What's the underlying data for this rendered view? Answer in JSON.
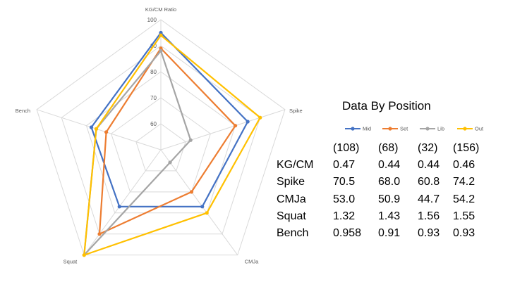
{
  "chart_data": {
    "type": "radar",
    "axes": [
      "KG/CM Ratio",
      "Spike",
      "CMJa",
      "Squat",
      "Bench"
    ],
    "radial_ticks": [
      "60",
      "70",
      "80",
      "90",
      "100"
    ],
    "radial_range": [
      50,
      100
    ],
    "grid": true,
    "legend_position": "right",
    "series": [
      {
        "name": "Mid",
        "color": "#4472C4",
        "values": [
          95,
          85,
          77,
          77,
          78
        ]
      },
      {
        "name": "Set",
        "color": "#ED7D31",
        "values": [
          89,
          80,
          70,
          90,
          72
        ]
      },
      {
        "name": "Lib",
        "color": "#A5A5A5",
        "values": [
          88,
          62,
          56,
          100,
          76
        ]
      },
      {
        "name": "Out",
        "color": "#FFC000",
        "values": [
          94,
          90,
          80,
          100,
          76
        ]
      }
    ]
  },
  "table": {
    "title": "Data By Position",
    "counts": [
      "(108)",
      "(68)",
      "(32)",
      "(156)"
    ],
    "rows": [
      {
        "label": "KG/CM",
        "values": [
          "0.47",
          "0.44",
          "0.44",
          "0.46"
        ]
      },
      {
        "label": "Spike",
        "values": [
          "70.5",
          "68.0",
          "60.8",
          "74.2"
        ]
      },
      {
        "label": "CMJa",
        "values": [
          "53.0",
          "50.9",
          "44.7",
          "54.2"
        ]
      },
      {
        "label": "Squat",
        "values": [
          "1.32",
          "1.43",
          "1.56",
          "1.55"
        ]
      },
      {
        "label": "Bench",
        "values": [
          "0.958",
          "0.91",
          "0.93",
          "0.93"
        ]
      }
    ]
  }
}
